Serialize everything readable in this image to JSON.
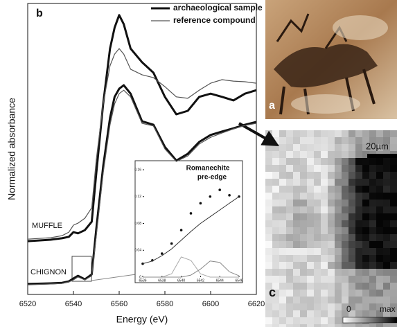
{
  "chart_data": [
    {
      "type": "line",
      "panel_label": "b",
      "xlabel": "Energy (eV)",
      "ylabel": "Normalized absorbance",
      "x": [
        6520,
        6530,
        6535,
        6538,
        6540,
        6542,
        6545,
        6548,
        6550,
        6553,
        6556,
        6558,
        6560,
        6562,
        6565,
        6570,
        6575,
        6580,
        6585,
        6590,
        6595,
        6600,
        6605,
        6610,
        6615,
        6620
      ],
      "xlim": [
        6520,
        6620
      ],
      "xticks": [
        6520,
        6540,
        6560,
        6580,
        6600,
        6620
      ],
      "ylim": [
        0,
        1
      ],
      "series": [
        {
          "name": "archaeological sample",
          "group": "MUFFLE",
          "color": "#111111",
          "line_width": 3,
          "values": [
            0.183,
            0.188,
            0.193,
            0.198,
            0.214,
            0.21,
            0.221,
            0.25,
            0.417,
            0.655,
            0.845,
            0.917,
            0.96,
            0.929,
            0.845,
            0.798,
            0.762,
            0.679,
            0.619,
            0.631,
            0.679,
            0.69,
            0.679,
            0.667,
            0.69,
            0.702
          ]
        },
        {
          "name": "reference compound",
          "group": "MUFFLE",
          "color": "#555555",
          "line_width": 1.2,
          "values": [
            0.19,
            0.195,
            0.202,
            0.214,
            0.238,
            0.245,
            0.262,
            0.298,
            0.464,
            0.655,
            0.786,
            0.826,
            0.845,
            0.826,
            0.774,
            0.755,
            0.745,
            0.714,
            0.679,
            0.674,
            0.702,
            0.726,
            0.738,
            0.733,
            0.731,
            0.726
          ]
        },
        {
          "name": "archaeological sample",
          "group": "CHIGNON",
          "color": "#111111",
          "line_width": 3,
          "values": [
            0.036,
            0.038,
            0.04,
            0.045,
            0.055,
            0.064,
            0.052,
            0.069,
            0.226,
            0.44,
            0.607,
            0.679,
            0.707,
            0.719,
            0.69,
            0.595,
            0.583,
            0.507,
            0.46,
            0.483,
            0.524,
            0.548,
            0.56,
            0.571,
            0.583,
            0.593
          ]
        },
        {
          "name": "reference compound",
          "group": "CHIGNON",
          "color": "#555555",
          "line_width": 1.2,
          "values": [
            0.033,
            0.036,
            0.038,
            0.043,
            0.05,
            0.06,
            0.05,
            0.064,
            0.202,
            0.417,
            0.583,
            0.655,
            0.69,
            0.702,
            0.679,
            0.588,
            0.579,
            0.5,
            0.457,
            0.476,
            0.517,
            0.54,
            0.555,
            0.569,
            0.581,
            0.588
          ]
        }
      ]
    },
    {
      "type": "line",
      "title_lines": [
        "Romanechite",
        "pre-edge"
      ],
      "x": [
        6536,
        6537,
        6538,
        6539,
        6540,
        6541,
        6542,
        6543,
        6544,
        6545,
        6546
      ],
      "xlim": [
        6536,
        6546
      ],
      "xticks": [
        6536,
        6538,
        6540,
        6542,
        6544,
        6546
      ],
      "ylim": [
        0,
        0.16
      ],
      "yticks": [
        0,
        0.04,
        0.08,
        0.12,
        0.16
      ],
      "series": [
        {
          "style": "points",
          "color": "#111111",
          "values": [
            0.02,
            0.025,
            0.035,
            0.05,
            0.07,
            0.095,
            0.11,
            0.12,
            0.13,
            0.122,
            0.12
          ]
        },
        {
          "style": "line",
          "color": "#333333",
          "values": [
            0.02,
            0.024,
            0.032,
            0.042,
            0.055,
            0.068,
            0.08,
            0.09,
            0.1,
            0.11,
            0.12
          ]
        },
        {
          "style": "line",
          "color": "#aaaaaa",
          "values": [
            0,
            0,
            0,
            0.005,
            0.03,
            0.025,
            0.005,
            0,
            0,
            0,
            0
          ]
        },
        {
          "style": "line",
          "color": "#888888",
          "values": [
            0,
            0,
            0,
            0,
            0,
            0.003,
            0.012,
            0.024,
            0.022,
            0.008,
            0.002
          ]
        }
      ]
    }
  ],
  "images": {
    "photo_label": "a",
    "map_label": "c",
    "scale_bar": "20µm",
    "colorbar_min": "0",
    "colorbar_max": "max"
  }
}
